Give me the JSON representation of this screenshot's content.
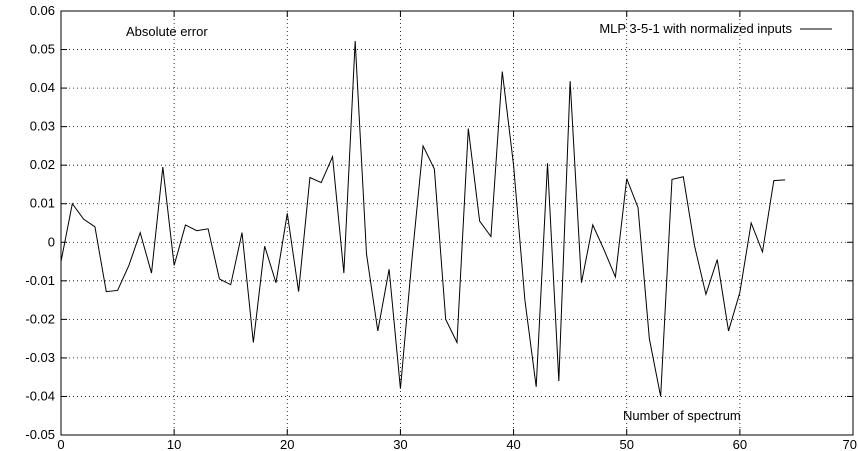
{
  "chart_data": {
    "type": "line",
    "annotations": {
      "top_left": "Absolute error",
      "bottom_right": "Number of spectrum"
    },
    "legend": {
      "placement": "top-right",
      "show_line_sample": true
    },
    "grid": true,
    "xlim": [
      0,
      70
    ],
    "ylim": [
      -0.05,
      0.06
    ],
    "x_ticks": [
      0,
      10,
      20,
      30,
      40,
      50,
      60,
      70
    ],
    "x_tick_labels": [
      "0",
      "10",
      "20",
      "30",
      "40",
      "50",
      "60",
      "70"
    ],
    "y_ticks": [
      -0.05,
      -0.04,
      -0.03,
      -0.02,
      -0.01,
      0,
      0.01,
      0.02,
      0.03,
      0.04,
      0.05,
      0.06
    ],
    "y_tick_labels": [
      "-0.05",
      "-0.04",
      "-0.03",
      "-0.02",
      "-0.01",
      "0",
      "0.01",
      "0.02",
      "0.03",
      "0.04",
      "0.05",
      "0.06"
    ],
    "series": [
      {
        "name": "MLP 3-5-1 with normalized inputs",
        "color": "#000000",
        "x": [
          0,
          1,
          2,
          3,
          4,
          5,
          6,
          7,
          8,
          9,
          10,
          11,
          12,
          13,
          14,
          15,
          16,
          17,
          18,
          19,
          20,
          21,
          22,
          23,
          24,
          25,
          26,
          27,
          28,
          29,
          30,
          31,
          32,
          33,
          34,
          35,
          36,
          37,
          38,
          39,
          40,
          41,
          42,
          43,
          44,
          45,
          46,
          47,
          48,
          49,
          50,
          51,
          52,
          53,
          54,
          55,
          56,
          57,
          58,
          59,
          60,
          61,
          62,
          63,
          64
        ],
        "y": [
          -0.005,
          0.01,
          0.006,
          0.004,
          -0.0128,
          -0.0125,
          -0.006,
          0.0025,
          -0.008,
          0.0195,
          -0.006,
          0.0045,
          0.003,
          0.0035,
          -0.0095,
          -0.011,
          0.0025,
          -0.026,
          -0.001,
          -0.0105,
          0.0075,
          -0.0128,
          0.0168,
          0.0155,
          0.0222,
          -0.008,
          0.0522,
          -0.003,
          -0.023,
          -0.007,
          -0.038,
          -0.005,
          0.025,
          0.019,
          -0.02,
          -0.026,
          0.0295,
          0.0055,
          0.0015,
          0.0443,
          0.02,
          -0.015,
          -0.0375,
          0.0205,
          -0.036,
          0.0418,
          -0.0105,
          0.0045,
          -0.002,
          -0.009,
          0.0165,
          0.009,
          -0.025,
          -0.04,
          0.0163,
          0.017,
          -0.001,
          -0.0135,
          -0.0045,
          -0.023,
          -0.013,
          0.005,
          -0.0025,
          0.016,
          0.0162
        ]
      }
    ]
  }
}
